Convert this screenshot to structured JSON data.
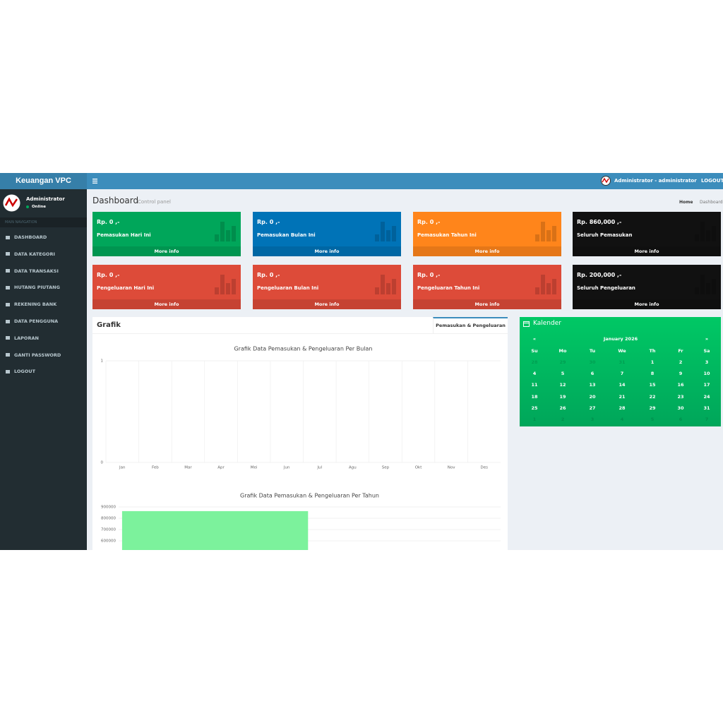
{
  "navbar": {
    "brand": "Keuangan VPC",
    "user": "Administrator - administrator",
    "logout": "LOGOUT"
  },
  "sidebar": {
    "user_name": "Administrator",
    "status": "Online",
    "section": "MAIN NAVIGATION",
    "menu": [
      "DASHBOARD",
      "DATA KATEGORI",
      "DATA TRANSAKSI",
      "HUTANG PIUTANG",
      "REKENING BANK",
      "DATA PENGGUNA",
      "LAPORAN",
      "GANTI PASSWORD",
      "LOGOUT"
    ]
  },
  "header": {
    "title": "Dashboard",
    "subtitle": "Control panel",
    "breadcrumb": [
      "Home",
      "Dashboard"
    ]
  },
  "stat_boxes": [
    {
      "amount": "Rp. 0 ,-",
      "label": "Pemasukan Hari Ini",
      "link": "More info",
      "color": "#00a65a"
    },
    {
      "amount": "Rp. 0 ,-",
      "label": "Pemasukan Bulan Ini",
      "link": "More info",
      "color": "#0073b7"
    },
    {
      "amount": "Rp. 0 ,-",
      "label": "Pemasukan Tahun Ini",
      "link": "More info",
      "color": "#ff851b"
    },
    {
      "amount": "Rp. 860,000 ,-",
      "label": "Seluruh Pemasukan",
      "link": "More info",
      "color": "#111111"
    },
    {
      "amount": "Rp. 0 ,-",
      "label": "Pengeluaran Hari Ini",
      "link": "More info",
      "color": "#dd4b39"
    },
    {
      "amount": "Rp. 0 ,-",
      "label": "Pengeluaran Bulan Ini",
      "link": "More info",
      "color": "#dd4b39"
    },
    {
      "amount": "Rp. 0 ,-",
      "label": "Pengeluaran Tahun Ini",
      "link": "More info",
      "color": "#dd4b39"
    },
    {
      "amount": "Rp. 200,000 ,-",
      "label": "Seluruh Pengeluaran",
      "link": "More info",
      "color": "#111111"
    }
  ],
  "grafik": {
    "title": "Grafik",
    "tab": "Pemasukan & Pengeluaran"
  },
  "chart_data": [
    {
      "type": "bar",
      "title": "Grafik Data Pemasukan & Pengeluaran Per Bulan",
      "categories": [
        "Jan",
        "Feb",
        "Mar",
        "Apr",
        "Mei",
        "Jun",
        "Jul",
        "Agu",
        "Sep",
        "Okt",
        "Nov",
        "Des"
      ],
      "series": [
        {
          "color": "#7cf29c",
          "values": [
            0,
            0,
            0,
            0,
            0,
            0,
            0,
            0,
            0,
            0,
            0,
            0
          ]
        },
        {
          "color": "#dd4b39",
          "values": [
            0,
            0,
            0,
            0,
            0,
            0,
            0,
            0,
            0,
            0,
            0,
            0
          ]
        }
      ],
      "ylim": [
        0,
        1
      ],
      "yticks": [
        0,
        1
      ],
      "grid": true
    },
    {
      "type": "bar",
      "title": "Grafik Data Pemasukan & Pengeluaran Per Tahun",
      "categories": [
        null
      ],
      "series": [
        {
          "color": "#7cf29c",
          "values": [
            860000
          ]
        }
      ],
      "ylim": [
        0,
        900000
      ],
      "yticks": [
        600000,
        700000,
        800000,
        900000
      ],
      "grid": true
    }
  ],
  "calendar": {
    "title": "Kalender",
    "month": "January 2026",
    "prev": "«",
    "next": "»",
    "weekdays": [
      "Su",
      "Mo",
      "Tu",
      "We",
      "Th",
      "Fr",
      "Sa"
    ],
    "weeks": [
      [
        "28",
        "29",
        "30",
        "31",
        "1",
        "2",
        "3"
      ],
      [
        "4",
        "5",
        "6",
        "7",
        "8",
        "9",
        "10"
      ],
      [
        "11",
        "12",
        "13",
        "14",
        "15",
        "16",
        "17"
      ],
      [
        "18",
        "19",
        "20",
        "21",
        "22",
        "23",
        "24"
      ],
      [
        "25",
        "26",
        "27",
        "28",
        "29",
        "30",
        "31"
      ],
      [
        "1",
        "2",
        "3",
        "4",
        "5",
        "6",
        "7"
      ]
    ]
  }
}
